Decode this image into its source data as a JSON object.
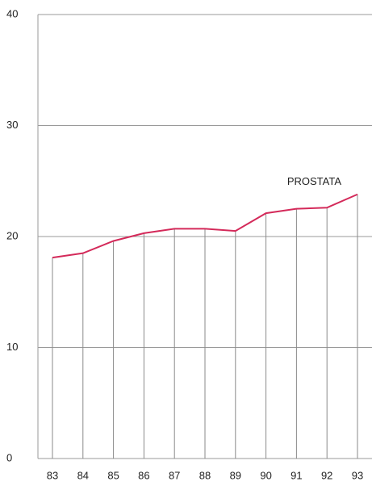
{
  "chart_data": {
    "type": "line",
    "categories": [
      "83",
      "84",
      "85",
      "86",
      "87",
      "88",
      "89",
      "90",
      "91",
      "92",
      "93"
    ],
    "series": [
      {
        "name": "PROSTATA",
        "color": "#d42a5a",
        "values": [
          18.1,
          18.5,
          19.6,
          20.3,
          20.7,
          20.7,
          20.5,
          22.1,
          22.5,
          22.6,
          23.8
        ]
      }
    ],
    "ylim": [
      0,
      40
    ],
    "yticks": [
      0,
      10,
      20,
      30,
      40
    ],
    "grid": true
  }
}
